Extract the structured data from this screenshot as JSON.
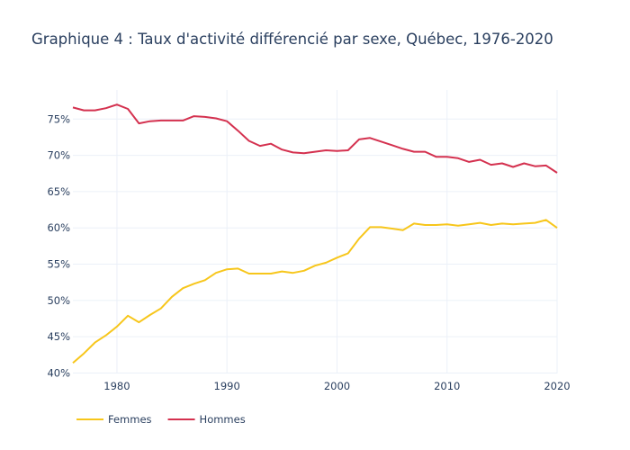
{
  "chart_data": {
    "type": "line",
    "title": "Graphique 4 : Taux d'activité différencié par sexe, Québec, 1976-2020",
    "xlabel": "",
    "ylabel": "",
    "xlim": [
      1976,
      2020
    ],
    "ylim": [
      40,
      79.5
    ],
    "grid": true,
    "legend_position": "bottom-left",
    "x_ticks": [
      1980,
      1990,
      2000,
      2010,
      2020
    ],
    "x_tick_labels": [
      "1980",
      "1990",
      "2000",
      "2010",
      "2020"
    ],
    "y_ticks": [
      40,
      45,
      50,
      55,
      60,
      65,
      70,
      75
    ],
    "y_tick_labels": [
      "40%",
      "45%",
      "50%",
      "55%",
      "60%",
      "65%",
      "70%",
      "75%"
    ],
    "x": [
      1976,
      1977,
      1978,
      1979,
      1980,
      1981,
      1982,
      1983,
      1984,
      1985,
      1986,
      1987,
      1988,
      1989,
      1990,
      1991,
      1992,
      1993,
      1994,
      1995,
      1996,
      1997,
      1998,
      1999,
      2000,
      2001,
      2002,
      2003,
      2004,
      2005,
      2006,
      2007,
      2008,
      2009,
      2010,
      2011,
      2012,
      2013,
      2014,
      2015,
      2016,
      2017,
      2018,
      2019,
      2020
    ],
    "series": [
      {
        "name": "Femmes",
        "color": "#f7c61b",
        "values": [
          41.4,
          42.7,
          44.2,
          45.2,
          46.4,
          47.9,
          47.0,
          48.0,
          48.9,
          50.5,
          51.7,
          52.3,
          52.8,
          53.8,
          54.3,
          54.4,
          53.7,
          53.7,
          53.7,
          54.0,
          53.8,
          54.1,
          54.8,
          55.2,
          55.9,
          56.5,
          58.5,
          60.1,
          60.1,
          59.9,
          59.7,
          60.6,
          60.4,
          60.4,
          60.5,
          60.3,
          60.5,
          60.7,
          60.4,
          60.6,
          60.5,
          60.6,
          60.7,
          61.1,
          60.0
        ]
      },
      {
        "name": "Hommes",
        "color": "#d4314f",
        "values": [
          76.6,
          76.2,
          76.2,
          76.5,
          77.0,
          76.4,
          74.4,
          74.7,
          74.8,
          74.8,
          74.8,
          75.4,
          75.3,
          75.1,
          74.7,
          73.4,
          72.0,
          71.3,
          71.6,
          70.8,
          70.4,
          70.3,
          70.5,
          70.7,
          70.6,
          70.7,
          72.2,
          72.4,
          71.9,
          71.4,
          70.9,
          70.5,
          70.5,
          69.8,
          69.8,
          69.6,
          69.1,
          69.4,
          68.7,
          68.9,
          68.4,
          68.9,
          68.5,
          68.6,
          67.6
        ]
      }
    ]
  }
}
